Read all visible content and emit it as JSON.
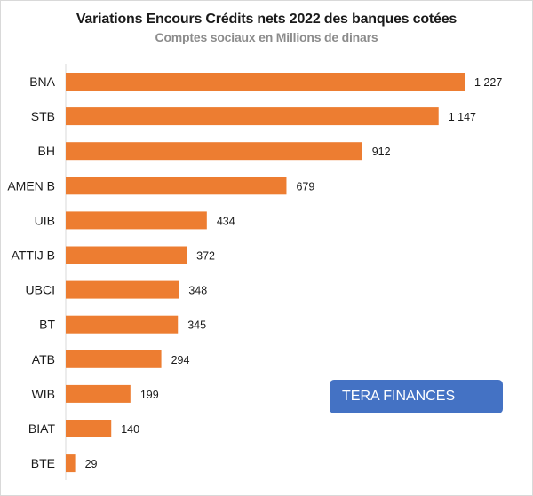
{
  "chart_data": {
    "type": "bar",
    "orientation": "horizontal",
    "title": "Variations Encours Crédits nets 2022 des banques cotées",
    "subtitle": "Comptes sociaux en Millions de dinars",
    "categories": [
      "BNA",
      "STB",
      "BH",
      "AMEN B",
      "UIB",
      "ATTIJ B",
      "UBCI",
      "BT",
      "ATB",
      "WIB",
      "BIAT",
      "BTE"
    ],
    "values": [
      1227,
      1147,
      912,
      679,
      434,
      372,
      348,
      345,
      294,
      199,
      140,
      29
    ],
    "value_labels": [
      "1 227",
      "1 147",
      "912",
      "679",
      "434",
      "372",
      "348",
      "345",
      "294",
      "199",
      "140",
      "29"
    ],
    "xlim": [
      0,
      1227
    ],
    "bar_color": "#ed7d31",
    "grid": false,
    "legend": "none"
  },
  "badge": {
    "label": "TERA FINANCES",
    "color": "#4472c4"
  }
}
